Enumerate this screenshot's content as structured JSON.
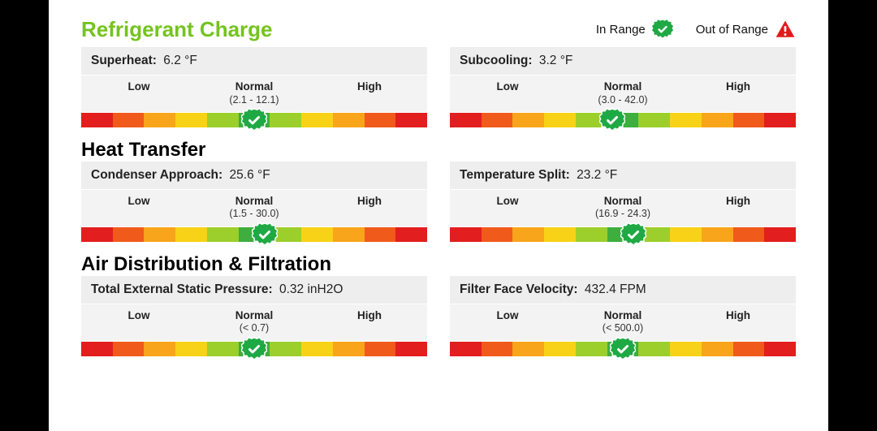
{
  "legend": {
    "in_range": "In Range",
    "out_of_range": "Out of Range"
  },
  "colors": {
    "green": "#1fa944",
    "green_dark": "#158a36",
    "red": "#e11b1b",
    "title_green": "#74c31e"
  },
  "zone_labels": {
    "low": "Low",
    "normal": "Normal",
    "high": "High"
  },
  "sections": [
    {
      "title": "Refrigerant Charge",
      "metrics": [
        {
          "label": "Superheat:",
          "value": "6.2 °F",
          "normal_range": "(2.1 - 12.1)",
          "marker_pct": 50,
          "status": "in_range"
        },
        {
          "label": "Subcooling:",
          "value": "3.2 °F",
          "normal_range": "(3.0 - 42.0)",
          "marker_pct": 47,
          "status": "in_range"
        }
      ]
    },
    {
      "title": "Heat Transfer",
      "metrics": [
        {
          "label": "Condenser Approach:",
          "value": "25.6 °F",
          "normal_range": "(1.5 - 30.0)",
          "marker_pct": 53,
          "status": "in_range"
        },
        {
          "label": "Temperature Split:",
          "value": "23.2 °F",
          "normal_range": "(16.9 - 24.3)",
          "marker_pct": 53,
          "status": "in_range"
        }
      ]
    },
    {
      "title": "Air Distribution & Filtration",
      "metrics": [
        {
          "label": "Total External Static Pressure:",
          "value": "0.32 inH2O",
          "normal_range": "(< 0.7)",
          "marker_pct": 50,
          "status": "in_range"
        },
        {
          "label": "Filter Face Velocity:",
          "value": "432.4 FPM",
          "normal_range": "(< 500.0)",
          "marker_pct": 50,
          "status": "in_range"
        }
      ]
    }
  ]
}
